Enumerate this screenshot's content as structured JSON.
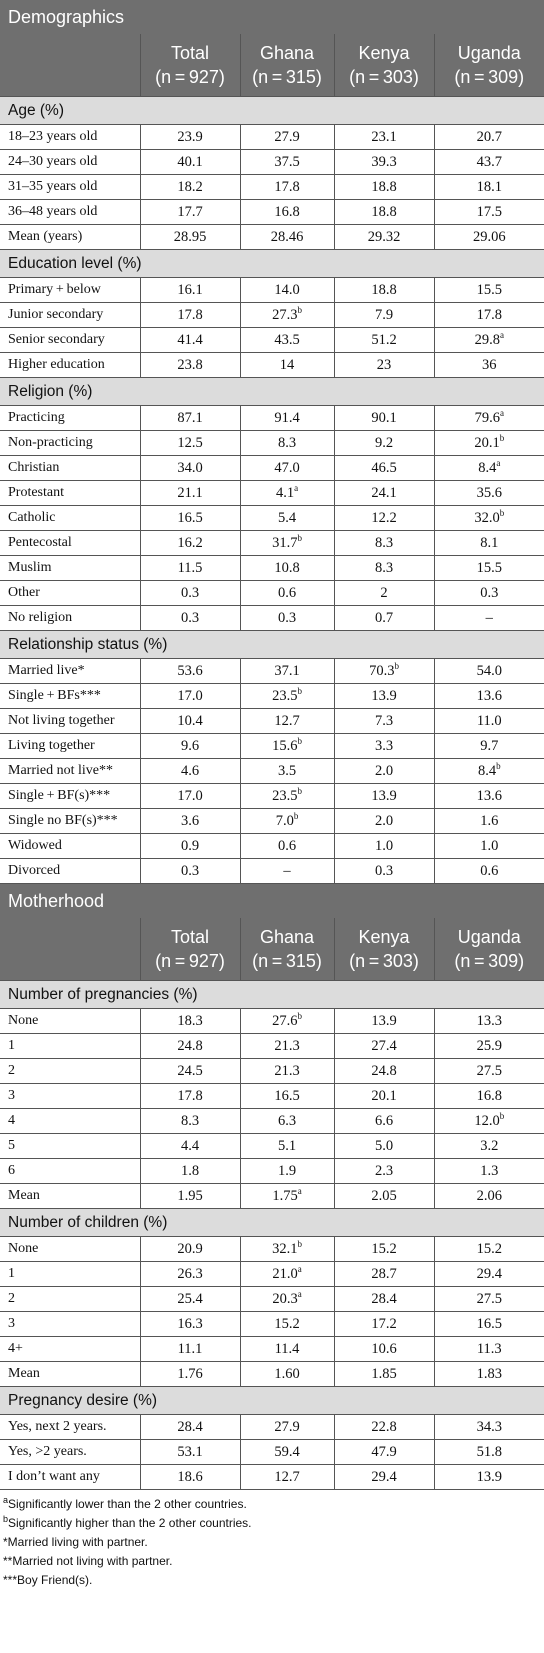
{
  "tables": [
    {
      "title": "Demographics",
      "columns": [
        {
          "name": "Total",
          "n": "(n = 927)"
        },
        {
          "name": "Ghana",
          "n": "(n = 315)"
        },
        {
          "name": "Kenya",
          "n": "(n = 303)"
        },
        {
          "name": "Uganda",
          "n": "(n = 309)"
        }
      ],
      "sections": [
        {
          "label": "Age (%)",
          "rows": [
            {
              "label": "18–23 years old",
              "values": [
                "23.9",
                "27.9",
                "23.1",
                "20.7"
              ],
              "sups": [
                "",
                "",
                "",
                ""
              ]
            },
            {
              "label": "24–30 years old",
              "values": [
                "40.1",
                "37.5",
                "39.3",
                "43.7"
              ],
              "sups": [
                "",
                "",
                "",
                ""
              ]
            },
            {
              "label": "31–35 years old",
              "values": [
                "18.2",
                "17.8",
                "18.8",
                "18.1"
              ],
              "sups": [
                "",
                "",
                "",
                ""
              ]
            },
            {
              "label": "36–48 years old",
              "values": [
                "17.7",
                "16.8",
                "18.8",
                "17.5"
              ],
              "sups": [
                "",
                "",
                "",
                ""
              ]
            },
            {
              "label": "Mean (years)",
              "values": [
                "28.95",
                "28.46",
                "29.32",
                "29.06"
              ],
              "sups": [
                "",
                "",
                "",
                ""
              ]
            }
          ]
        },
        {
          "label": "Education level (%)",
          "rows": [
            {
              "label": "Primary + below",
              "values": [
                "16.1",
                "14.0",
                "18.8",
                "15.5"
              ],
              "sups": [
                "",
                "",
                "",
                ""
              ]
            },
            {
              "label": "Junior secondary",
              "values": [
                "17.8",
                "27.3",
                "7.9",
                "17.8"
              ],
              "sups": [
                "",
                "b",
                "",
                ""
              ]
            },
            {
              "label": "Senior secondary",
              "values": [
                "41.4",
                "43.5",
                "51.2",
                "29.8"
              ],
              "sups": [
                "",
                "",
                "",
                "a"
              ]
            },
            {
              "label": "Higher education",
              "values": [
                "23.8",
                "14",
                "23",
                "36"
              ],
              "sups": [
                "",
                "",
                "",
                ""
              ]
            }
          ]
        },
        {
          "label": "Religion (%)",
          "rows": [
            {
              "label": "Practicing",
              "values": [
                "87.1",
                "91.4",
                "90.1",
                "79.6"
              ],
              "sups": [
                "",
                "",
                "",
                "a"
              ]
            },
            {
              "label": "Non-practicing",
              "values": [
                "12.5",
                "8.3",
                "9.2",
                "20.1"
              ],
              "sups": [
                "",
                "",
                "",
                "b"
              ]
            },
            {
              "label": "Christian",
              "values": [
                "34.0",
                "47.0",
                "46.5",
                "8.4"
              ],
              "sups": [
                "",
                "",
                "",
                "a"
              ]
            },
            {
              "label": "Protestant",
              "values": [
                "21.1",
                "4.1",
                "24.1",
                "35.6"
              ],
              "sups": [
                "",
                "a",
                "",
                ""
              ]
            },
            {
              "label": "Catholic",
              "values": [
                "16.5",
                "5.4",
                "12.2",
                "32.0"
              ],
              "sups": [
                "",
                "",
                "",
                "b"
              ]
            },
            {
              "label": "Pentecostal",
              "values": [
                "16.2",
                "31.7",
                "8.3",
                "8.1"
              ],
              "sups": [
                "",
                "b",
                "",
                ""
              ]
            },
            {
              "label": "Muslim",
              "values": [
                "11.5",
                "10.8",
                "8.3",
                "15.5"
              ],
              "sups": [
                "",
                "",
                "",
                ""
              ]
            },
            {
              "label": "Other",
              "values": [
                "0.3",
                "0.6",
                "2",
                "0.3"
              ],
              "sups": [
                "",
                "",
                "",
                ""
              ]
            },
            {
              "label": "No religion",
              "values": [
                "0.3",
                "0.3",
                "0.7",
                "–"
              ],
              "sups": [
                "",
                "",
                "",
                ""
              ]
            }
          ]
        },
        {
          "label": "Relationship status (%)",
          "rows": [
            {
              "label": "Married live*",
              "values": [
                "53.6",
                "37.1",
                "70.3",
                "54.0"
              ],
              "sups": [
                "",
                "",
                "b",
                ""
              ]
            },
            {
              "label": "Single + BFs***",
              "values": [
                "17.0",
                "23.5",
                "13.9",
                "13.6"
              ],
              "sups": [
                "",
                "b",
                "",
                ""
              ]
            },
            {
              "label": "Not living together",
              "values": [
                "10.4",
                "12.7",
                "7.3",
                "11.0"
              ],
              "sups": [
                "",
                "",
                "",
                ""
              ]
            },
            {
              "label": "Living together",
              "values": [
                "9.6",
                "15.6",
                "3.3",
                "9.7"
              ],
              "sups": [
                "",
                "b",
                "",
                ""
              ]
            },
            {
              "label": "Married not live**",
              "values": [
                "4.6",
                "3.5",
                "2.0",
                "8.4"
              ],
              "sups": [
                "",
                "",
                "",
                "b"
              ]
            },
            {
              "label": "Single + BF(s)***",
              "values": [
                "17.0",
                "23.5",
                "13.9",
                "13.6"
              ],
              "sups": [
                "",
                "b",
                "",
                ""
              ]
            },
            {
              "label": "Single no BF(s)***",
              "values": [
                "3.6",
                "7.0",
                "2.0",
                "1.6"
              ],
              "sups": [
                "",
                "b",
                "",
                ""
              ]
            },
            {
              "label": "Widowed",
              "values": [
                "0.9",
                "0.6",
                "1.0",
                "1.0"
              ],
              "sups": [
                "",
                "",
                "",
                ""
              ]
            },
            {
              "label": "Divorced",
              "values": [
                "0.3",
                "–",
                "0.3",
                "0.6"
              ],
              "sups": [
                "",
                "",
                "",
                ""
              ]
            }
          ]
        }
      ]
    },
    {
      "title": "Motherhood",
      "columns": [
        {
          "name": "Total",
          "n": "(n = 927)"
        },
        {
          "name": "Ghana",
          "n": "(n = 315)"
        },
        {
          "name": "Kenya",
          "n": "(n = 303)"
        },
        {
          "name": "Uganda",
          "n": "(n = 309)"
        }
      ],
      "sections": [
        {
          "label": "Number of pregnancies (%)",
          "rows": [
            {
              "label": "None",
              "values": [
                "18.3",
                "27.6",
                "13.9",
                "13.3"
              ],
              "sups": [
                "",
                "b",
                "",
                ""
              ]
            },
            {
              "label": "1",
              "values": [
                "24.8",
                "21.3",
                "27.4",
                "25.9"
              ],
              "sups": [
                "",
                "",
                "",
                ""
              ]
            },
            {
              "label": "2",
              "values": [
                "24.5",
                "21.3",
                "24.8",
                "27.5"
              ],
              "sups": [
                "",
                "",
                "",
                ""
              ]
            },
            {
              "label": "3",
              "values": [
                "17.8",
                "16.5",
                "20.1",
                "16.8"
              ],
              "sups": [
                "",
                "",
                "",
                ""
              ]
            },
            {
              "label": "4",
              "values": [
                "8.3",
                "6.3",
                "6.6",
                "12.0"
              ],
              "sups": [
                "",
                "",
                "",
                "b"
              ]
            },
            {
              "label": "5",
              "values": [
                "4.4",
                "5.1",
                "5.0",
                "3.2"
              ],
              "sups": [
                "",
                "",
                "",
                ""
              ]
            },
            {
              "label": "6",
              "values": [
                "1.8",
                "1.9",
                "2.3",
                "1.3"
              ],
              "sups": [
                "",
                "",
                "",
                ""
              ]
            },
            {
              "label": "Mean",
              "values": [
                "1.95",
                "1.75",
                "2.05",
                "2.06"
              ],
              "sups": [
                "",
                "a",
                "",
                ""
              ]
            }
          ]
        },
        {
          "label": "Number of children (%)",
          "rows": [
            {
              "label": "None",
              "values": [
                "20.9",
                "32.1",
                "15.2",
                "15.2"
              ],
              "sups": [
                "",
                "b",
                "",
                ""
              ]
            },
            {
              "label": "1",
              "values": [
                "26.3",
                "21.0",
                "28.7",
                "29.4"
              ],
              "sups": [
                "",
                "a",
                "",
                ""
              ]
            },
            {
              "label": "2",
              "values": [
                "25.4",
                "20.3",
                "28.4",
                "27.5"
              ],
              "sups": [
                "",
                "a",
                "",
                ""
              ]
            },
            {
              "label": "3",
              "values": [
                "16.3",
                "15.2",
                "17.2",
                "16.5"
              ],
              "sups": [
                "",
                "",
                "",
                ""
              ]
            },
            {
              "label": "4+",
              "values": [
                "11.1",
                "11.4",
                "10.6",
                "11.3"
              ],
              "sups": [
                "",
                "",
                "",
                ""
              ]
            },
            {
              "label": "Mean",
              "values": [
                "1.76",
                "1.60",
                "1.85",
                "1.83"
              ],
              "sups": [
                "",
                "",
                "",
                ""
              ]
            }
          ]
        },
        {
          "label": "Pregnancy desire (%)",
          "rows": [
            {
              "label": "Yes, next 2 years.",
              "values": [
                "28.4",
                "27.9",
                "22.8",
                "34.3"
              ],
              "sups": [
                "",
                "",
                "",
                ""
              ]
            },
            {
              "label": "Yes, >2 years.",
              "values": [
                "53.1",
                "59.4",
                "47.9",
                "51.8"
              ],
              "sups": [
                "",
                "",
                "",
                ""
              ]
            },
            {
              "label": "I don’t want any",
              "values": [
                "18.6",
                "12.7",
                "29.4",
                "13.9"
              ],
              "sups": [
                "",
                "",
                "",
                ""
              ]
            }
          ]
        }
      ]
    }
  ],
  "footnotes": [
    {
      "mark": "a",
      "text": "Significantly lower than the 2 other countries."
    },
    {
      "mark": "b",
      "text": "Significantly higher than the 2 other countries."
    },
    {
      "mark": "",
      "text": "*Married living with partner."
    },
    {
      "mark": "",
      "text": "**Married not living with partner."
    },
    {
      "mark": "",
      "text": "***Boy Friend(s)."
    }
  ]
}
